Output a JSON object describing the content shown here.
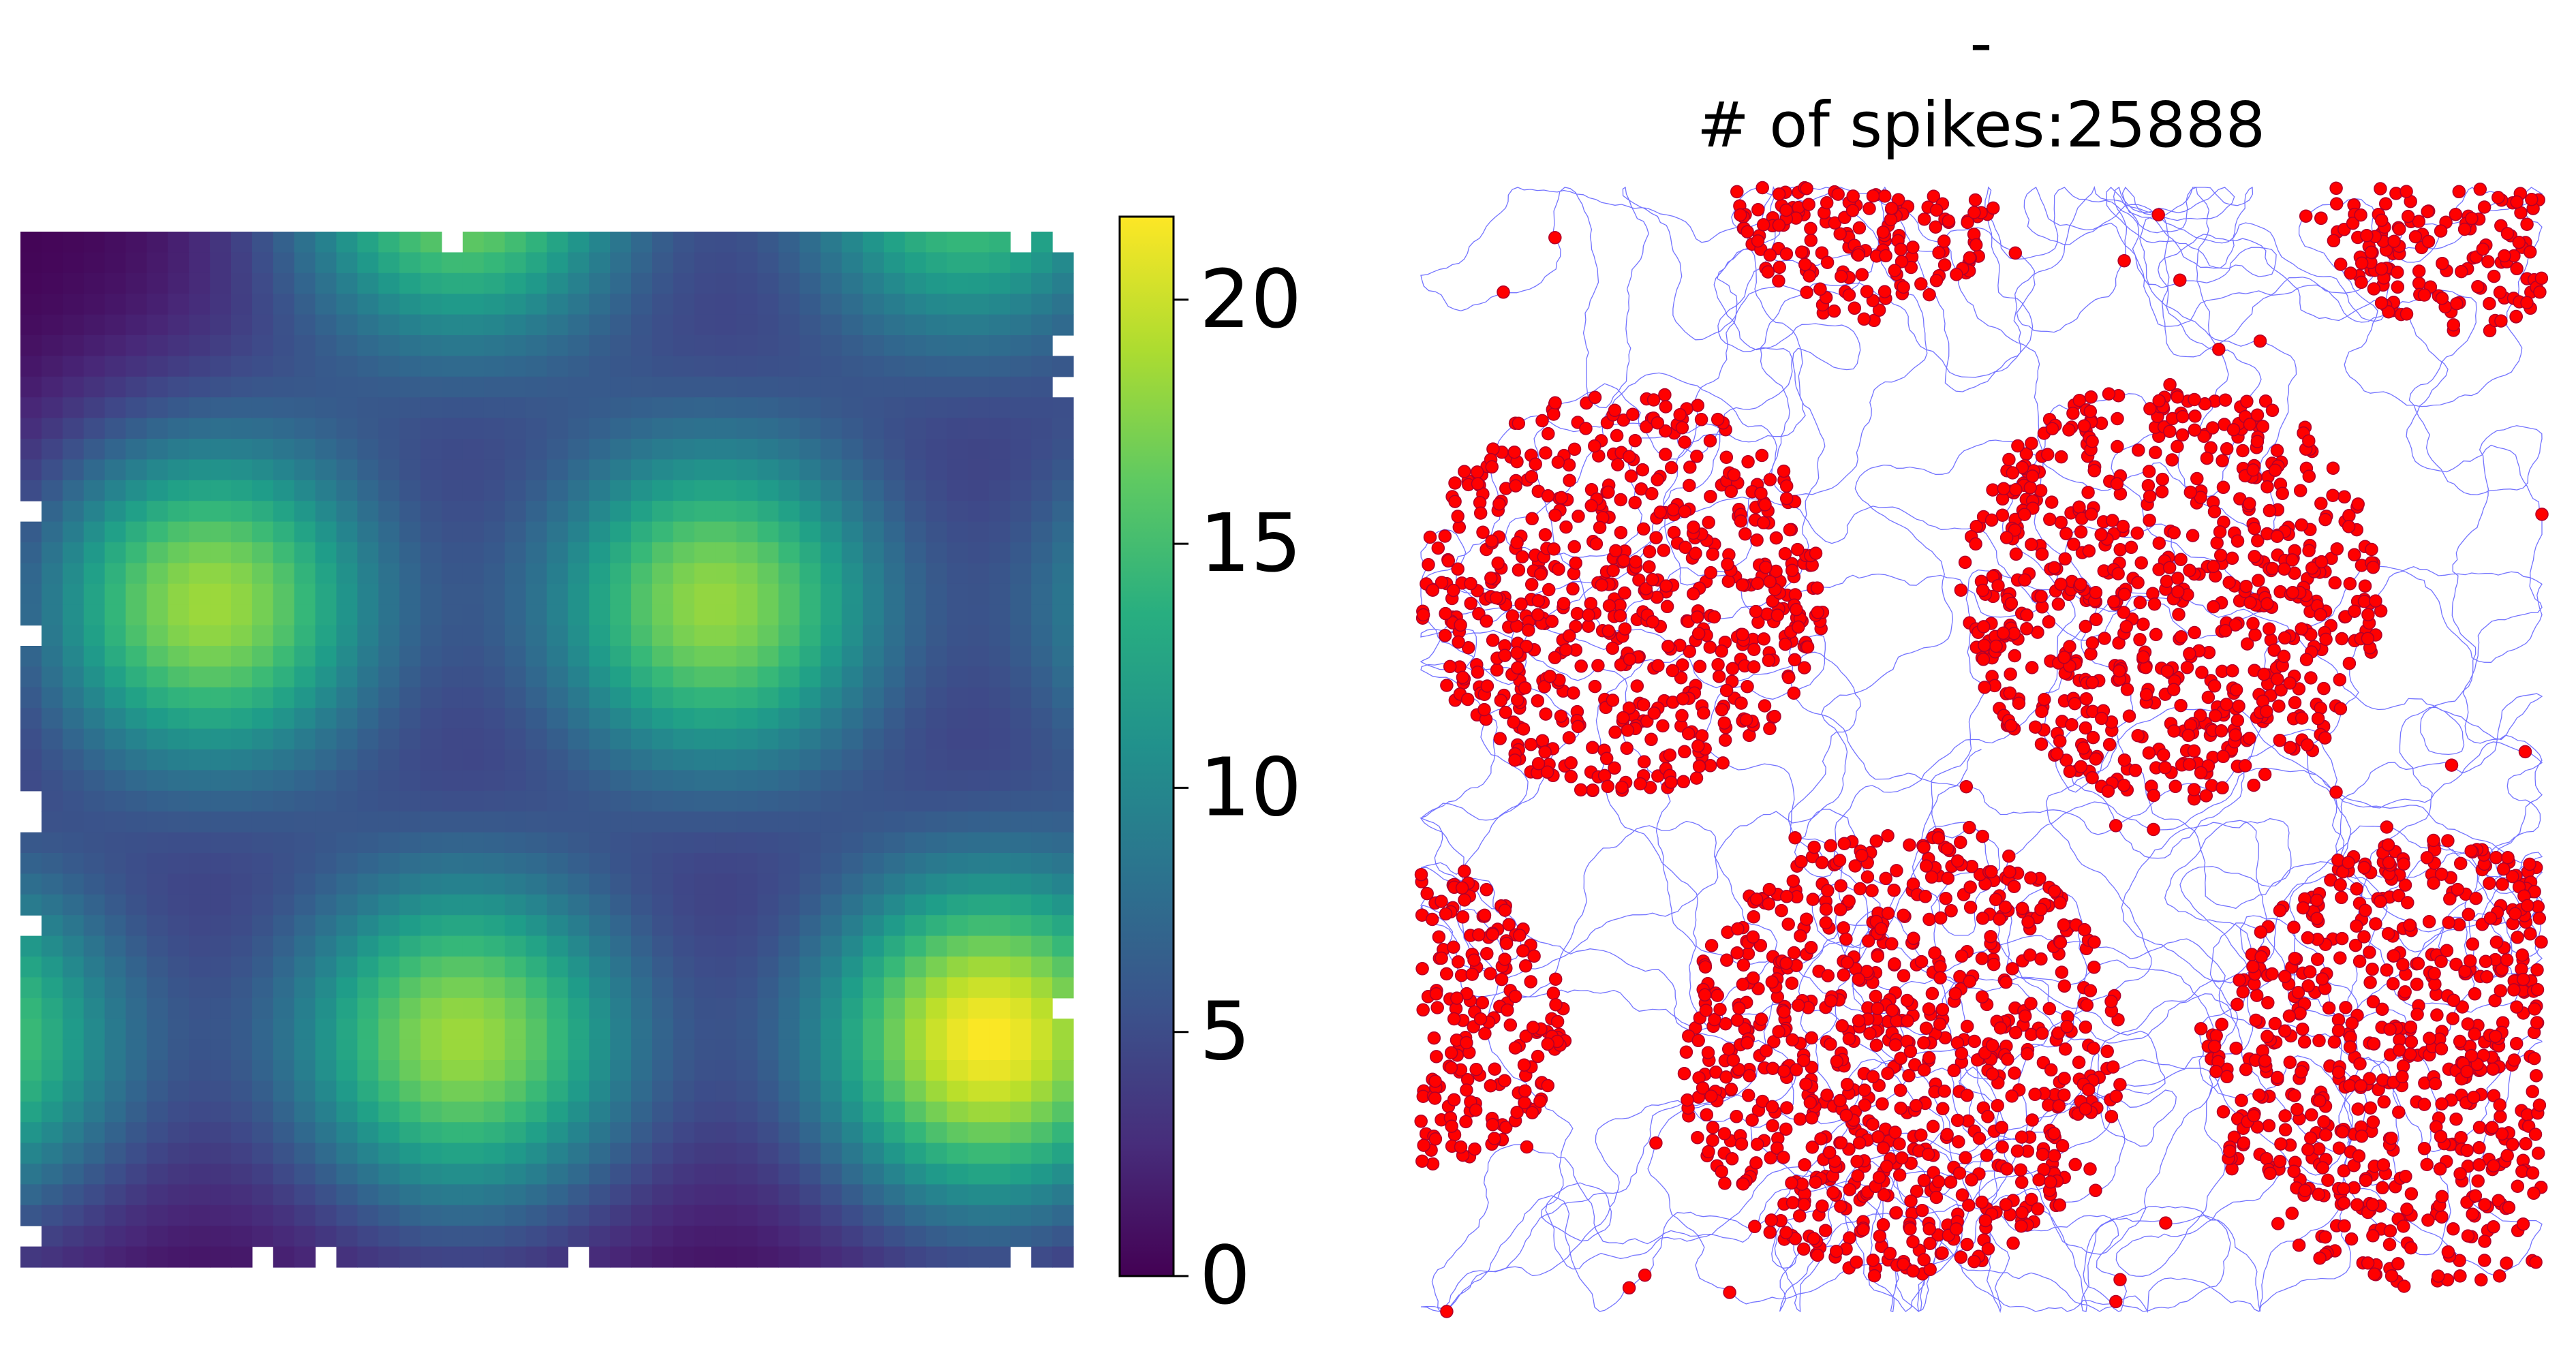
{
  "chart_data": [
    {
      "type": "heatmap",
      "title": "",
      "xlabel": "",
      "ylabel": "",
      "grid": false,
      "axes_visible": false,
      "colormap": "viridis",
      "grid_size": [
        50,
        50
      ],
      "colorbar": {
        "range": [
          0,
          21.7
        ],
        "ticks": [
          0,
          5,
          10,
          15,
          20
        ],
        "tick_labels": [
          "0",
          "5",
          "10",
          "15",
          "20"
        ]
      },
      "fields": [
        {
          "x": 0.18,
          "y": 0.36,
          "peak": 18.5,
          "width": 0.125
        },
        {
          "x": 0.66,
          "y": 0.36,
          "peak": 18.2,
          "width": 0.125
        },
        {
          "x": 0.42,
          "y": 0.78,
          "peak": 18.5,
          "width": 0.125
        },
        {
          "x": 0.92,
          "y": 0.78,
          "peak": 21.7,
          "width": 0.125
        },
        {
          "x": 0.42,
          "y": -0.05,
          "peak": 18.0,
          "width": 0.125
        },
        {
          "x": -0.06,
          "y": 0.78,
          "peak": 17.0,
          "width": 0.125
        },
        {
          "x": 1.14,
          "y": 0.36,
          "peak": 16.0,
          "width": 0.125
        },
        {
          "x": 0.9,
          "y": -0.05,
          "peak": 16.0,
          "width": 0.125
        }
      ]
    },
    {
      "type": "scatter",
      "title_line1": "-",
      "title_line2": "# of spikes:25888",
      "spike_count": 25888,
      "xlabel": "",
      "ylabel": "",
      "grid": false,
      "axes_visible": false,
      "trajectory_color": "#0000ff",
      "spike_color": "#ff0000",
      "spike_edge_color": "#b0002a",
      "clusters": [
        {
          "x": 0.18,
          "y": 0.36,
          "r": 0.18
        },
        {
          "x": 0.67,
          "y": 0.36,
          "r": 0.19
        },
        {
          "x": 0.43,
          "y": 0.77,
          "r": 0.2
        },
        {
          "x": 0.9,
          "y": 0.78,
          "r": 0.2
        },
        {
          "x": 0.0,
          "y": 0.74,
          "r": 0.13
        },
        {
          "x": 0.4,
          "y": 0.0,
          "r": 0.12
        },
        {
          "x": 0.93,
          "y": 0.0,
          "r": 0.13
        }
      ]
    }
  ]
}
